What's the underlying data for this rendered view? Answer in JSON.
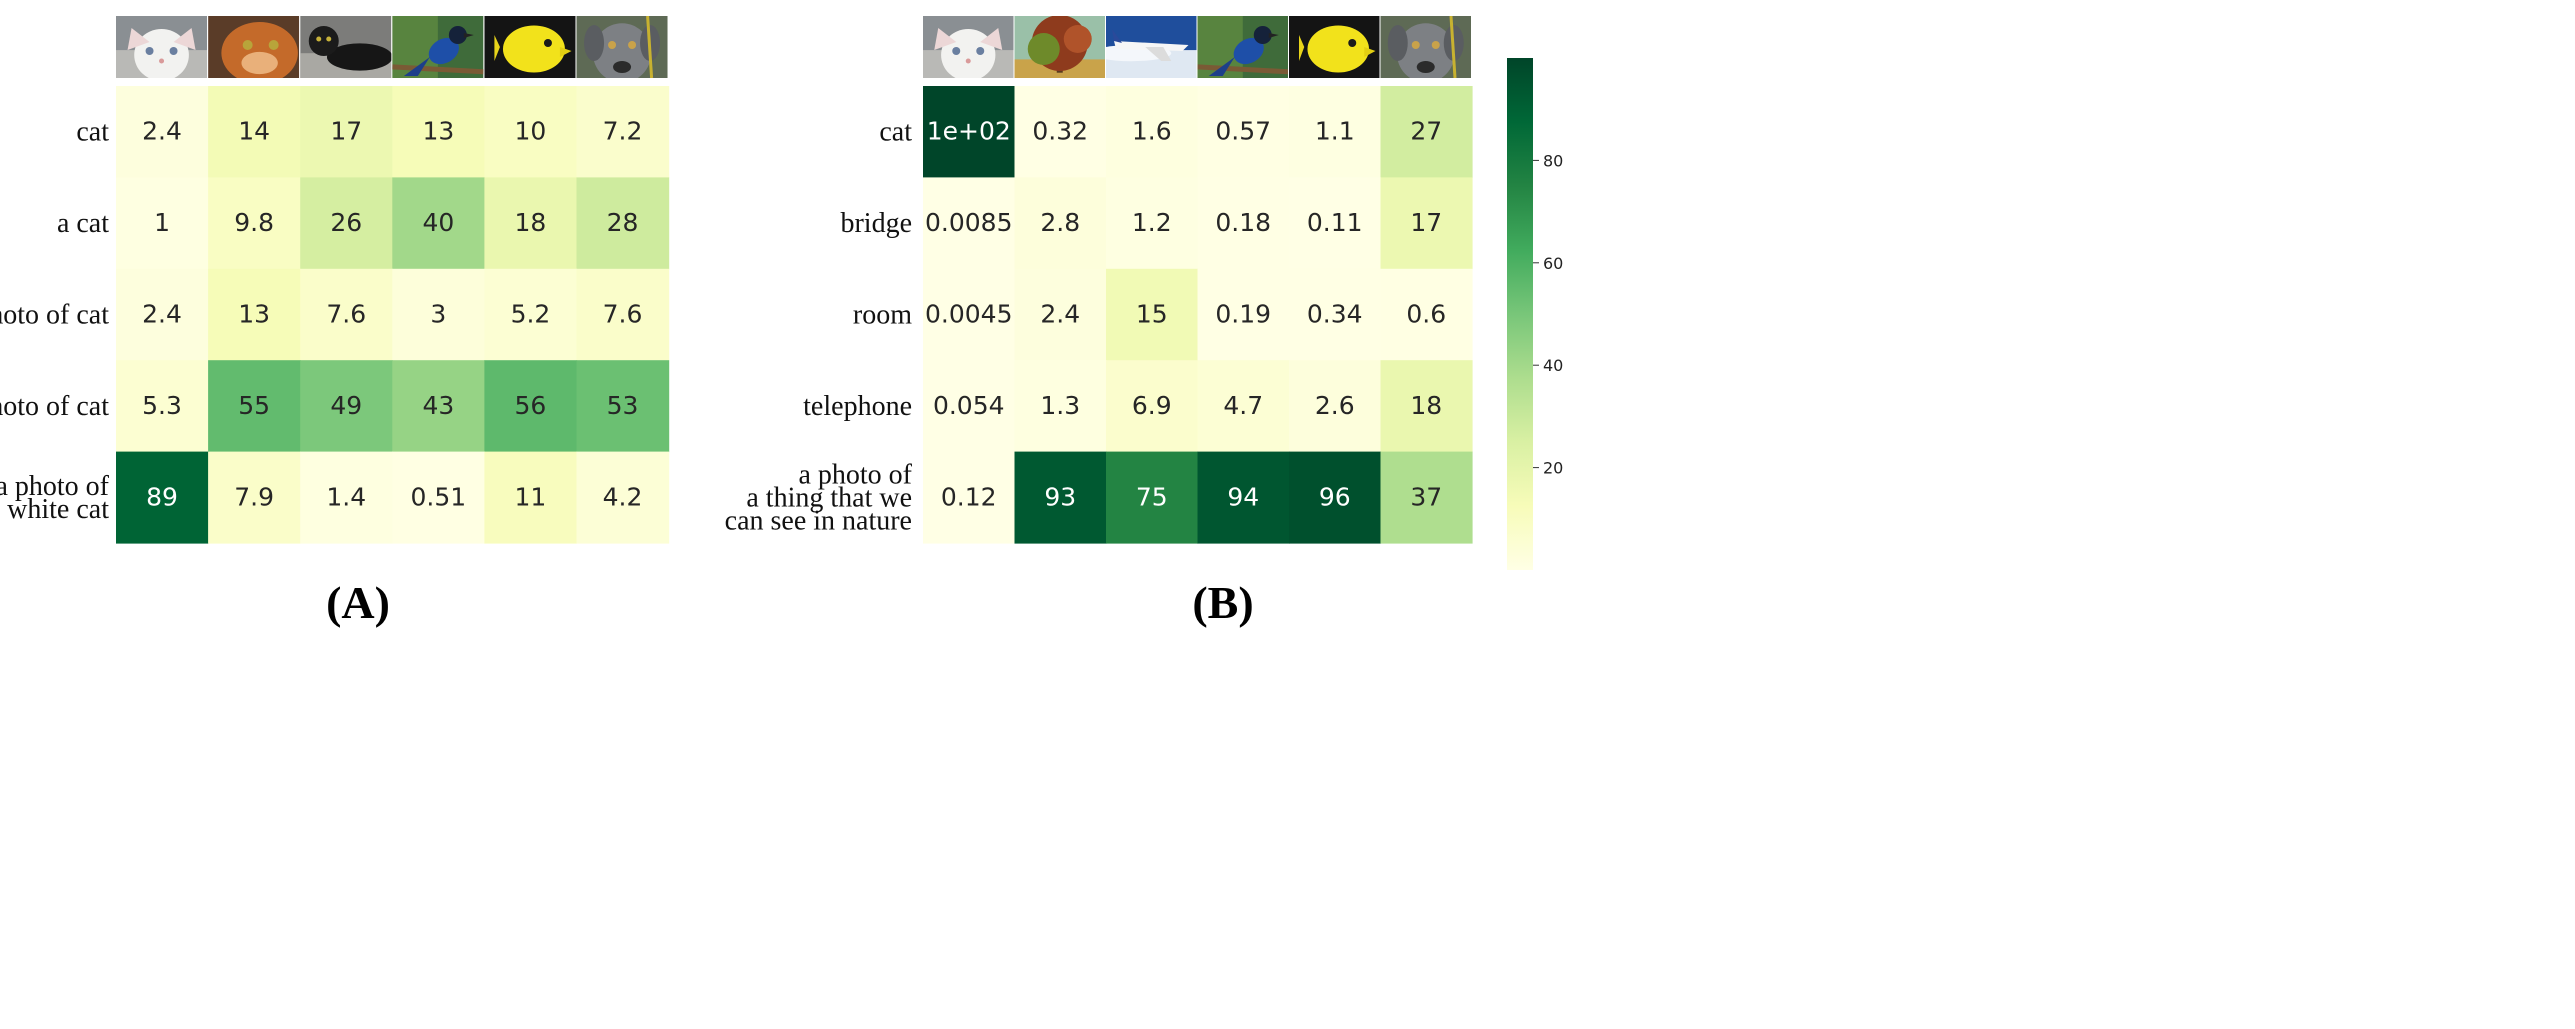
{
  "colors": {
    "cmap": "Greens-YlGn",
    "stops": [
      "#ffffe5",
      "#f7fcb9",
      "#d9f0a3",
      "#addd8e",
      "#78c679",
      "#41ab5d",
      "#238443",
      "#006837",
      "#004529"
    ]
  },
  "chart_data": [
    {
      "type": "heatmap",
      "panel_label": "(A)",
      "column_images": [
        "white-cat-photo",
        "orange-cat-photo",
        "black-cat-photo",
        "blue-bird-photo",
        "yellow-fish-photo",
        "grey-dog-photo"
      ],
      "rows": [
        {
          "label": [
            "cat"
          ],
          "values": [
            2.4,
            14,
            17,
            13,
            10,
            7.2
          ],
          "text": [
            "2.4",
            "14",
            "17",
            "13",
            "10",
            "7.2"
          ]
        },
        {
          "label": [
            "a cat"
          ],
          "values": [
            1,
            9.8,
            26,
            40,
            18,
            28
          ],
          "text": [
            "1",
            "9.8",
            "26",
            "40",
            "18",
            "28"
          ]
        },
        {
          "label": [
            "photo of cat"
          ],
          "values": [
            2.4,
            13,
            7.6,
            3,
            5.2,
            7.6
          ],
          "text": [
            "2.4",
            "13",
            "7.6",
            "3",
            "5.2",
            "7.6"
          ]
        },
        {
          "label": [
            "a photo of cat"
          ],
          "values": [
            5.3,
            55,
            49,
            43,
            56,
            53
          ],
          "text": [
            "5.3",
            "55",
            "49",
            "43",
            "56",
            "53"
          ]
        },
        {
          "label": [
            "a photo of",
            "white cat"
          ],
          "values": [
            89,
            7.9,
            1.4,
            0.51,
            11,
            4.2
          ],
          "text": [
            "89",
            "7.9",
            "1.4",
            "0.51",
            "11",
            "4.2"
          ]
        }
      ]
    },
    {
      "type": "heatmap",
      "panel_label": "(B)",
      "column_images": [
        "white-cat-photo",
        "tree-photo",
        "airplane-photo",
        "blue-bird-photo",
        "yellow-fish-photo",
        "grey-dog-photo"
      ],
      "rows": [
        {
          "label": [
            "cat"
          ],
          "values": [
            100,
            0.32,
            1.6,
            0.57,
            1.1,
            27
          ],
          "text": [
            "1e+02",
            "0.32",
            "1.6",
            "0.57",
            "1.1",
            "27"
          ]
        },
        {
          "label": [
            "bridge"
          ],
          "values": [
            0.0085,
            2.8,
            1.2,
            0.18,
            0.11,
            17
          ],
          "text": [
            "0.0085",
            "2.8",
            "1.2",
            "0.18",
            "0.11",
            "17"
          ]
        },
        {
          "label": [
            "room"
          ],
          "values": [
            0.0045,
            2.4,
            15,
            0.19,
            0.34,
            0.6
          ],
          "text": [
            "0.0045",
            "2.4",
            "15",
            "0.19",
            "0.34",
            "0.6"
          ]
        },
        {
          "label": [
            "telephone"
          ],
          "values": [
            0.054,
            1.3,
            6.9,
            4.7,
            2.6,
            18
          ],
          "text": [
            "0.054",
            "1.3",
            "6.9",
            "4.7",
            "2.6",
            "18"
          ]
        },
        {
          "label": [
            "a photo of",
            "a thing  that we",
            "can see in nature"
          ],
          "values": [
            0.12,
            93,
            75,
            94,
            96,
            37
          ],
          "text": [
            "0.12",
            "93",
            "75",
            "94",
            "96",
            "37"
          ]
        }
      ]
    }
  ],
  "colorbar": {
    "range": [
      0,
      100
    ],
    "ticks": [
      20,
      40,
      60,
      80
    ],
    "tick_labels": [
      "20",
      "40",
      "60",
      "80"
    ]
  }
}
